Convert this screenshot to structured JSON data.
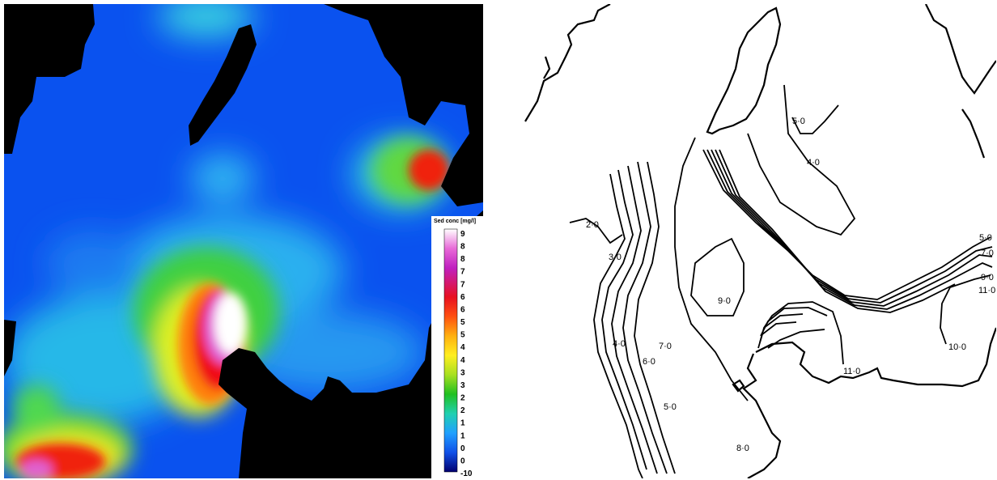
{
  "left_map": {
    "legend": {
      "title": "Sed conc [mg/l]",
      "ticks": [
        "9",
        "8",
        "8",
        "7",
        "7",
        "6",
        "6",
        "5",
        "5",
        "4",
        "4",
        "3",
        "3",
        "2",
        "2",
        "1",
        "1",
        "0",
        "0",
        "-10"
      ],
      "gradient": [
        "#ffffff",
        "#e86ad8",
        "#c020c0",
        "#e81020",
        "#ff5010",
        "#ffb010",
        "#ffee20",
        "#a8e020",
        "#20c020",
        "#20d0b0",
        "#20a0ff",
        "#1050e8",
        "#000070"
      ]
    },
    "colors": {
      "water_low": "#0a52ef",
      "land": "#000000"
    }
  },
  "right_map": {
    "contour_labels": [
      "5·0",
      "4·0",
      "2·0",
      "3·0",
      "5·0",
      "7·0",
      "9·0",
      "11·0",
      "9·0",
      "4·0",
      "7·0",
      "6·0",
      "11·0",
      "10·0",
      "5·0",
      "8·0"
    ]
  }
}
